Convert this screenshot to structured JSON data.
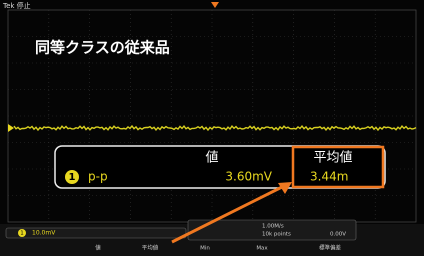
{
  "header": {
    "status": "Tek 停止"
  },
  "overlay_title": "同等クラスの従来品",
  "measurement": {
    "columns": [
      "値",
      "平均値"
    ],
    "row": {
      "channel": "1",
      "type": "p-p",
      "value": "3.60mV",
      "mean": "3.44m"
    }
  },
  "status_bar": {
    "channel": "1",
    "scale": "10.0mV",
    "sample_rate": "1.00M/s",
    "record": "10k points",
    "trigger_level": "0.00V",
    "columns": [
      "値",
      "平均値",
      "Min",
      "Max",
      "標準偏差"
    ]
  }
}
